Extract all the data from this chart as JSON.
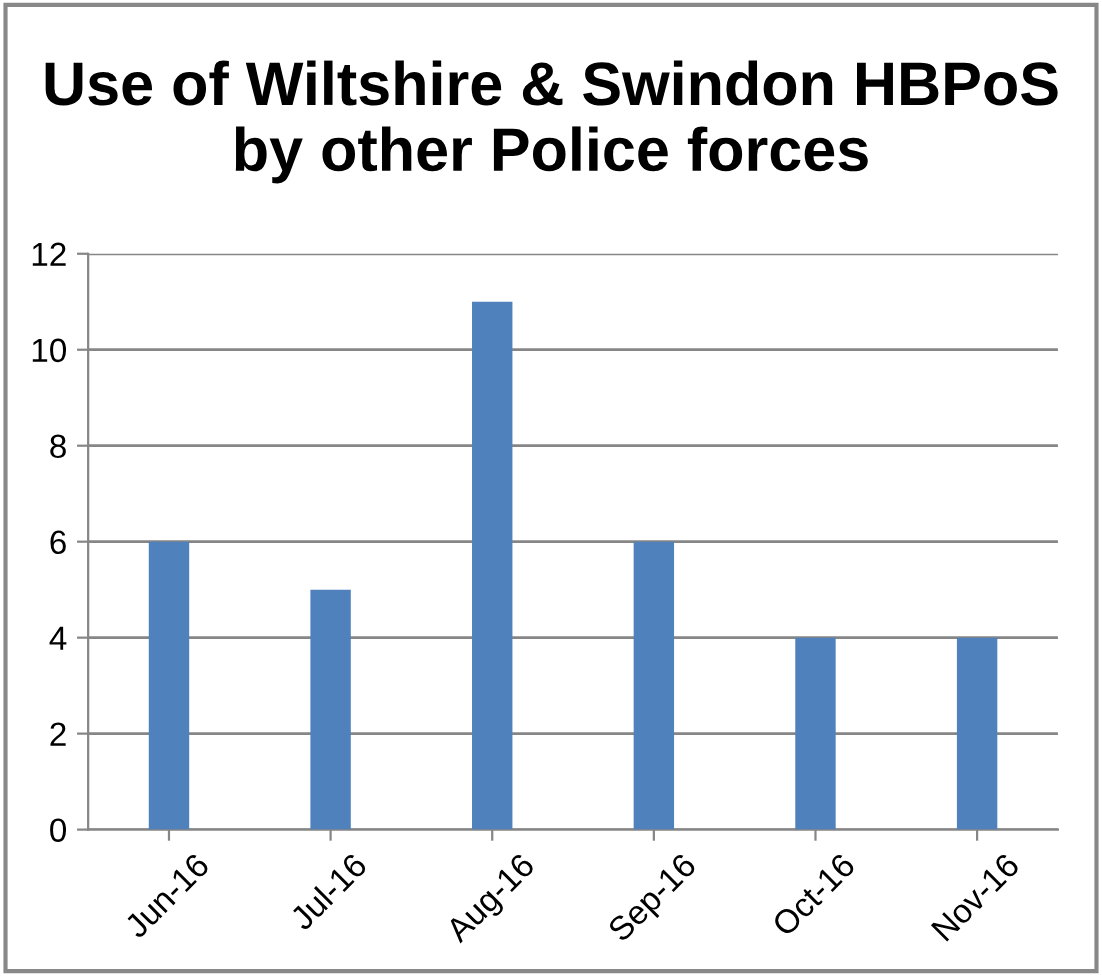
{
  "chart_data": {
    "type": "bar",
    "title": "Use of Wiltshire & Swindon HBPoS by other Police forces",
    "categories": [
      "Jun-16",
      "Jul-16",
      "Aug-16",
      "Sep-16",
      "Oct-16",
      "Nov-16"
    ],
    "values": [
      6,
      5,
      11,
      6,
      4,
      4
    ],
    "color": "#4f81bd",
    "ylim": [
      0,
      12
    ],
    "yticks": [
      0,
      2,
      4,
      6,
      8,
      10,
      12
    ],
    "grid": "y",
    "legend": false
  }
}
